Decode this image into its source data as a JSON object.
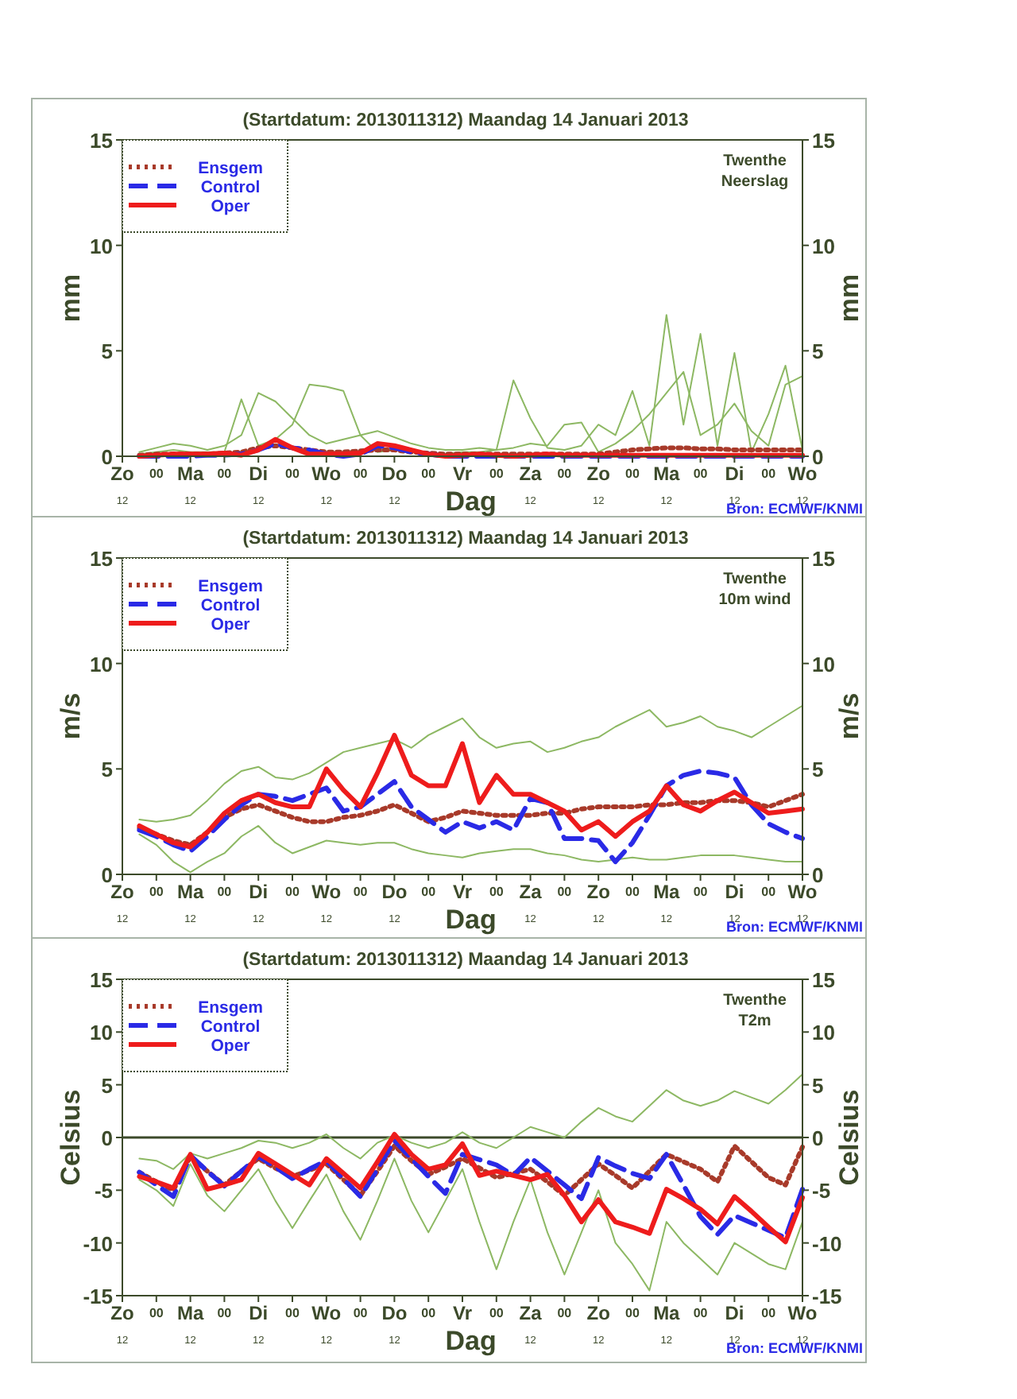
{
  "chart_data": [
    {
      "type": "line",
      "title": "(Startdatum: 2013011312)   Maandag   14 Januari   2013",
      "xlabel": "Dag",
      "ylabel": "mm",
      "y2label": "mm",
      "annotations": [
        "Twenthe",
        "Neerslag",
        "Bron: ECMWF/KNMI"
      ],
      "categories": [
        "Zo\n12",
        null,
        "00",
        null,
        "Ma\n12",
        null,
        "00",
        null,
        "Di\n12",
        null,
        "00",
        null,
        "Wo\n12",
        null,
        "00",
        null,
        "Do\n12",
        null,
        "00",
        null,
        "Vr",
        null,
        "00",
        null,
        "Za\n12",
        null,
        "00",
        null,
        "Zo\n12",
        null,
        "00",
        null,
        "Ma\n12",
        null,
        "00",
        null,
        "Di\n12",
        null,
        "00",
        null,
        "Wo\n12"
      ],
      "ylim": [
        0,
        15
      ],
      "yticks": [
        0,
        5,
        10,
        15
      ],
      "y2lim": [
        0,
        15
      ],
      "y2ticks": [
        0,
        5,
        10,
        15
      ],
      "grid": false,
      "legend": "top left",
      "series": [
        {
          "color": "#8db863",
          "line_style": "solid",
          "values": [
            null,
            0.1,
            0.2,
            0.3,
            0.2,
            0.2,
            0.2,
            2.7,
            0.5,
            0.8,
            1.5,
            3.4,
            3.3,
            3.1,
            1.0,
            0.2,
            0.3,
            0.2,
            0.1,
            0.1,
            0.2,
            0.2,
            0.3,
            3.6,
            1.8,
            0.4,
            0.3,
            0.5,
            1.5,
            1.0,
            3.1,
            0.5,
            6.7,
            1.5,
            5.8,
            0.5,
            4.9,
            0.2,
            2.0,
            4.3,
            0.3
          ]
        },
        {
          "color": "#8db863",
          "line_style": "solid",
          "values": [
            null,
            0.2,
            0.4,
            0.6,
            0.5,
            0.3,
            0.5,
            1.0,
            3.0,
            2.6,
            1.8,
            1.0,
            0.6,
            0.8,
            1.0,
            1.2,
            0.9,
            0.6,
            0.4,
            0.3,
            0.3,
            0.4,
            0.3,
            0.4,
            0.6,
            0.5,
            1.5,
            1.6,
            0.2,
            0.6,
            1.2,
            2.0,
            3.0,
            4.0,
            1.0,
            1.5,
            2.5,
            1.2,
            0.5,
            3.4,
            3.8
          ]
        },
        {
          "name": "Ensgem",
          "color": "#a83a2a",
          "line_style": "dotted",
          "values": [
            null,
            0.05,
            0.1,
            0.1,
            0.1,
            0.1,
            0.15,
            0.2,
            0.4,
            0.5,
            0.4,
            0.3,
            0.2,
            0.2,
            0.25,
            0.3,
            0.3,
            0.2,
            0.15,
            0.1,
            0.1,
            0.1,
            0.1,
            0.1,
            0.1,
            0.1,
            0.1,
            0.1,
            0.1,
            0.2,
            0.3,
            0.35,
            0.4,
            0.4,
            0.35,
            0.35,
            0.3,
            0.3,
            0.3,
            0.3,
            0.3
          ]
        },
        {
          "name": "Control",
          "color": "#2a2ae6",
          "line_style": "dashed",
          "values": [
            null,
            0,
            0,
            0,
            0,
            0.05,
            0.05,
            0.1,
            0.3,
            0.6,
            0.4,
            0.3,
            0.1,
            0,
            0.1,
            0.5,
            0.4,
            0.2,
            0.1,
            0,
            0,
            0,
            0,
            0,
            0,
            0,
            0,
            0,
            0,
            0,
            0,
            0,
            0,
            0,
            0,
            0,
            0,
            0,
            0,
            0,
            0
          ]
        },
        {
          "name": "Oper",
          "color": "#ee1c1c",
          "line_style": "solid",
          "values": [
            null,
            0,
            0.05,
            0.1,
            0.1,
            0.1,
            0.15,
            0.05,
            0.3,
            0.8,
            0.4,
            0.1,
            0.1,
            0.1,
            0.15,
            0.6,
            0.5,
            0.3,
            0.1,
            0,
            0.05,
            0.1,
            0.05,
            0,
            0.05,
            0.1,
            0.05,
            0.05,
            0.05,
            0.05,
            0.05,
            0.05,
            0.05,
            0.05,
            0.05,
            0.05,
            0.05,
            0.05,
            0.05,
            0.05,
            0.05
          ]
        }
      ]
    },
    {
      "type": "line",
      "title": "(Startdatum: 2013011312)   Maandag   14 Januari   2013",
      "xlabel": "Dag",
      "ylabel": "m/s",
      "y2label": "m/s",
      "annotations": [
        "Twenthe",
        "10m wind",
        "Bron: ECMWF/KNMI"
      ],
      "categories": [
        "Zo\n12",
        null,
        "00",
        null,
        "Ma\n12",
        null,
        "00",
        null,
        "Di\n12",
        null,
        "00",
        null,
        "Wo\n12",
        null,
        "00",
        null,
        "Do\n12",
        null,
        "00",
        null,
        "Vr",
        null,
        "00",
        null,
        "Za\n12",
        null,
        "00",
        null,
        "Zo\n12",
        null,
        "00",
        null,
        "Ma\n12",
        null,
        "00",
        null,
        "Di\n12",
        null,
        "00",
        null,
        "Wo\n12"
      ],
      "ylim": [
        0,
        15
      ],
      "yticks": [
        0,
        5,
        10,
        15
      ],
      "y2lim": [
        0,
        15
      ],
      "y2ticks": [
        0,
        5,
        10,
        15
      ],
      "grid": false,
      "legend": "top left",
      "series": [
        {
          "color": "#8db863",
          "line_style": "solid",
          "values": [
            null,
            2.6,
            2.5,
            2.6,
            2.8,
            3.5,
            4.3,
            4.9,
            5.1,
            4.6,
            4.5,
            4.8,
            5.3,
            5.8,
            6.0,
            6.2,
            6.4,
            6.0,
            6.6,
            7.0,
            7.4,
            6.5,
            6.0,
            6.2,
            6.3,
            5.8,
            6.0,
            6.3,
            6.5,
            7.0,
            7.4,
            7.8,
            7.0,
            7.2,
            7.5,
            7.0,
            6.8,
            6.5,
            7.0,
            7.5,
            8.0
          ]
        },
        {
          "color": "#8db863",
          "line_style": "solid",
          "values": [
            null,
            1.9,
            1.4,
            0.6,
            0.1,
            0.6,
            1.0,
            1.8,
            2.3,
            1.5,
            1.0,
            1.3,
            1.6,
            1.5,
            1.4,
            1.5,
            1.5,
            1.2,
            1.0,
            0.9,
            0.8,
            1.0,
            1.1,
            1.2,
            1.2,
            1.0,
            0.9,
            0.7,
            0.6,
            0.7,
            0.8,
            0.7,
            0.7,
            0.8,
            0.9,
            0.9,
            0.9,
            0.8,
            0.7,
            0.6,
            0.6
          ]
        },
        {
          "name": "Ensgem",
          "color": "#a83a2a",
          "line_style": "dotted",
          "values": [
            null,
            2.2,
            1.9,
            1.6,
            1.4,
            2.0,
            2.7,
            3.1,
            3.3,
            3.0,
            2.7,
            2.5,
            2.5,
            2.7,
            2.8,
            3.0,
            3.3,
            2.9,
            2.5,
            2.7,
            3.0,
            2.9,
            2.8,
            2.8,
            2.8,
            2.9,
            2.9,
            3.1,
            3.2,
            3.2,
            3.2,
            3.3,
            3.3,
            3.4,
            3.4,
            3.5,
            3.5,
            3.4,
            3.2,
            3.5,
            3.8
          ]
        },
        {
          "name": "Control",
          "color": "#2a2ae6",
          "line_style": "dashed",
          "values": [
            null,
            2.1,
            1.8,
            1.4,
            1.1,
            1.8,
            2.6,
            3.3,
            3.8,
            3.7,
            3.5,
            3.8,
            4.1,
            3.0,
            3.2,
            3.8,
            4.4,
            3.2,
            2.6,
            2.0,
            2.5,
            2.2,
            2.5,
            2.1,
            3.6,
            3.4,
            1.7,
            1.7,
            1.6,
            0.6,
            1.5,
            2.8,
            4.2,
            4.7,
            4.9,
            4.8,
            4.6,
            3.3,
            2.4,
            2.0,
            1.7
          ]
        },
        {
          "name": "Oper",
          "color": "#ee1c1c",
          "line_style": "solid",
          "values": [
            null,
            2.3,
            1.9,
            1.5,
            1.3,
            2.0,
            2.9,
            3.5,
            3.8,
            3.4,
            3.2,
            3.2,
            5.0,
            4.0,
            3.2,
            4.8,
            6.6,
            4.7,
            4.2,
            4.2,
            6.2,
            3.4,
            4.7,
            3.8,
            3.8,
            3.4,
            3.0,
            2.1,
            2.5,
            1.8,
            2.5,
            3.0,
            4.2,
            3.3,
            3.0,
            3.5,
            3.9,
            3.4,
            2.9,
            3.0,
            3.1
          ]
        }
      ]
    },
    {
      "type": "line",
      "title": "(Startdatum: 2013011312)   Maandag   14 Januari   2013",
      "xlabel": "Dag",
      "ylabel": "Celsius",
      "y2label": "Celsius",
      "annotations": [
        "Twenthe",
        "T2m",
        "Bron: ECMWF/KNMI"
      ],
      "categories": [
        "Zo\n12",
        null,
        "00",
        null,
        "Ma\n12",
        null,
        "00",
        null,
        "Di\n12",
        null,
        "00",
        null,
        "Wo\n12",
        null,
        "00",
        null,
        "Do\n12",
        null,
        "00",
        null,
        "Vr",
        null,
        "00",
        null,
        "Za\n12",
        null,
        "00",
        null,
        "Zo\n12",
        null,
        "00",
        null,
        "Ma\n12",
        null,
        "00",
        null,
        "Di\n12",
        null,
        "00",
        null,
        "Wo\n12"
      ],
      "ylim": [
        -15,
        15
      ],
      "yticks": [
        -15,
        -10,
        -5,
        0,
        5,
        10,
        15
      ],
      "y2lim": [
        -15,
        15
      ],
      "y2ticks": [
        -15,
        -10,
        -5,
        0,
        5,
        10,
        15
      ],
      "grid": false,
      "legend": "top left",
      "ref_lines": [
        {
          "axis": "y",
          "value": 0,
          "color": "#3c4a2a"
        }
      ],
      "series": [
        {
          "color": "#8db863",
          "line_style": "solid",
          "values": [
            null,
            -2.0,
            -2.2,
            -3.0,
            -1.5,
            -2.0,
            -1.5,
            -1.0,
            -0.3,
            -0.5,
            -1.0,
            -0.5,
            0.3,
            -1.0,
            -2.0,
            -0.5,
            0.2,
            -0.5,
            -1.0,
            -0.5,
            0.5,
            -0.5,
            -1.0,
            0.0,
            1.0,
            0.5,
            0.0,
            1.5,
            2.8,
            2.0,
            1.5,
            3.0,
            4.5,
            3.5,
            3.0,
            3.5,
            4.4,
            3.8,
            3.2,
            4.5,
            6.0
          ]
        },
        {
          "color": "#8db863",
          "line_style": "solid",
          "values": [
            null,
            -4.0,
            -5.0,
            -6.5,
            -2.5,
            -5.5,
            -7.0,
            -5.0,
            -3.0,
            -6.0,
            -8.6,
            -6.0,
            -3.5,
            -7.0,
            -9.7,
            -6.0,
            -2.0,
            -6.0,
            -9.0,
            -6.0,
            -3.0,
            -8.0,
            -12.5,
            -8.0,
            -4.0,
            -9.0,
            -13.0,
            -9.0,
            -5.0,
            -10.0,
            -12.0,
            -14.5,
            -8.0,
            -10.0,
            -11.5,
            -13.0,
            -10.0,
            -11.0,
            -12.0,
            -12.5,
            -8.0
          ]
        },
        {
          "name": "Ensgem",
          "color": "#a83a2a",
          "line_style": "dotted",
          "values": [
            null,
            -3.3,
            -4.2,
            -5.0,
            -1.8,
            -3.2,
            -4.5,
            -3.2,
            -2.0,
            -2.9,
            -3.7,
            -3.1,
            -2.5,
            -4.0,
            -5.5,
            -3.2,
            -0.8,
            -2.2,
            -3.5,
            -2.8,
            -2.0,
            -2.9,
            -3.8,
            -3.4,
            -3.0,
            -4.2,
            -5.5,
            -4.0,
            -2.5,
            -3.6,
            -4.8,
            -3.2,
            -1.6,
            -2.3,
            -3.0,
            -4.2,
            -0.8,
            -2.3,
            -3.8,
            -4.5,
            -0.9
          ]
        },
        {
          "name": "Control",
          "color": "#2a2ae6",
          "line_style": "dashed",
          "values": [
            null,
            -3.3,
            -4.5,
            -5.6,
            -1.7,
            -3.2,
            -4.6,
            -3.2,
            -1.8,
            -2.8,
            -3.9,
            -3.0,
            -2.2,
            -3.9,
            -5.6,
            -3.0,
            -0.3,
            -2.0,
            -3.7,
            -5.3,
            -1.6,
            -2.1,
            -2.6,
            -3.6,
            -1.9,
            -3.2,
            -4.5,
            -5.8,
            -1.9,
            -2.7,
            -3.4,
            -3.9,
            -1.6,
            -4.5,
            -7.5,
            -9.2,
            -7.4,
            -8.1,
            -8.8,
            -9.5,
            -4.9
          ]
        },
        {
          "name": "Oper",
          "color": "#ee1c1c",
          "line_style": "solid",
          "values": [
            null,
            -3.7,
            -4.2,
            -4.8,
            -1.6,
            -4.9,
            -4.5,
            -4.0,
            -1.5,
            -2.5,
            -3.5,
            -4.5,
            -2.0,
            -3.4,
            -4.8,
            -2.3,
            0.3,
            -1.6,
            -3.0,
            -2.6,
            -0.6,
            -3.6,
            -3.2,
            -3.6,
            -4.0,
            -3.5,
            -5.5,
            -8.0,
            -5.9,
            -8.0,
            -8.5,
            -9.1,
            -4.9,
            -5.8,
            -6.8,
            -8.2,
            -5.6,
            -7.0,
            -8.5,
            -9.9,
            -5.7
          ]
        }
      ]
    }
  ]
}
